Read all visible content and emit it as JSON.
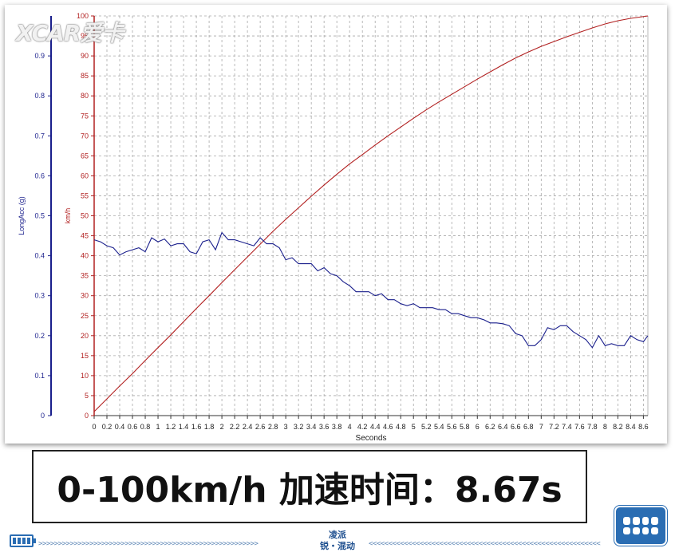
{
  "watermark": "XCAR爱卡",
  "result_text": "0-100km/h  加速时间：8.67s",
  "footer": {
    "brand_line1": "凌派",
    "brand_line2": "锐・混动",
    "arrows_left": ">>>>>>>>>>>>>>>>>>>>>>>>>>>>>>>>>>>>>>>>>>>>>>>>>>>>>>>>",
    "arrows_right": "<<<<<<<<<<<<<<<<<<<<<<<<<<<<<<<<<<<<<<<<<<<<<<<<<<<<<<<<<<<"
  },
  "icons": [
    "battery-icon",
    "engine-icon"
  ],
  "chart_data": {
    "type": "line",
    "title": "",
    "xlabel": "Seconds",
    "xlim": [
      0,
      8.67
    ],
    "x_ticks": [
      "0",
      "0.2",
      "0.4",
      "0.6",
      "0.8",
      "1",
      "1.2",
      "1.4",
      "1.6",
      "1.8",
      "2",
      "2.2",
      "2.4",
      "2.6",
      "2.8",
      "3",
      "3.2",
      "3.4",
      "3.6",
      "3.8",
      "4",
      "4.2",
      "4.4",
      "4.6",
      "4.8",
      "5",
      "5.2",
      "5.4",
      "5.6",
      "5.8",
      "6",
      "6.2",
      "6.4",
      "6.6",
      "6.8",
      "7",
      "7.2",
      "7.4",
      "7.6",
      "7.8",
      "8",
      "8.2",
      "8.4",
      "8.6"
    ],
    "x_tick_values": [
      0,
      0.2,
      0.4,
      0.6,
      0.8,
      1,
      1.2,
      1.4,
      1.6,
      1.8,
      2,
      2.2,
      2.4,
      2.6,
      2.8,
      3,
      3.2,
      3.4,
      3.6,
      3.8,
      4,
      4.2,
      4.4,
      4.6,
      4.8,
      5,
      5.2,
      5.4,
      5.6,
      5.8,
      6,
      6.2,
      6.4,
      6.6,
      6.8,
      7,
      7.2,
      7.4,
      7.6,
      7.8,
      8,
      8.2,
      8.4,
      8.6
    ],
    "grid": true,
    "axes": [
      {
        "id": "acc",
        "label": "LongAcc (g)",
        "color": "#1a1f8c",
        "ylim": [
          0,
          1
        ],
        "ticks": [
          "0",
          "0.1",
          "0.2",
          "0.3",
          "0.4",
          "0.5",
          "0.6",
          "0.7",
          "0.8",
          "0.9"
        ],
        "tick_values": [
          0,
          0.1,
          0.2,
          0.3,
          0.4,
          0.5,
          0.6,
          0.7,
          0.8,
          0.9
        ]
      },
      {
        "id": "speed",
        "label": "km/h",
        "color": "#b22020",
        "ylim": [
          0,
          100
        ],
        "ticks": [
          "0",
          "5",
          "10",
          "15",
          "20",
          "25",
          "30",
          "35",
          "40",
          "45",
          "50",
          "55",
          "60",
          "65",
          "70",
          "75",
          "80",
          "85",
          "90",
          "95",
          "100"
        ],
        "tick_values": [
          0,
          5,
          10,
          15,
          20,
          25,
          30,
          35,
          40,
          45,
          50,
          55,
          60,
          65,
          70,
          75,
          80,
          85,
          90,
          95,
          100
        ]
      }
    ],
    "series": [
      {
        "axis": "speed",
        "color": "#b22020",
        "x": [
          0,
          0.2,
          0.4,
          0.6,
          0.8,
          1.0,
          1.2,
          1.4,
          1.6,
          1.8,
          2.0,
          2.2,
          2.4,
          2.6,
          2.8,
          3.0,
          3.2,
          3.4,
          3.6,
          3.8,
          4.0,
          4.2,
          4.4,
          4.6,
          4.8,
          5.0,
          5.2,
          5.4,
          5.6,
          5.8,
          6.0,
          6.2,
          6.4,
          6.6,
          6.8,
          7.0,
          7.2,
          7.4,
          7.6,
          7.8,
          8.0,
          8.2,
          8.4,
          8.67
        ],
        "y": [
          1,
          4.2,
          7.4,
          10.5,
          13.8,
          17,
          20.2,
          23.5,
          26.8,
          30,
          33.3,
          36.5,
          39.7,
          42.9,
          46.1,
          49.1,
          52.0,
          54.9,
          57.7,
          60.4,
          63.0,
          65.3,
          67.7,
          70.0,
          72.2,
          74.4,
          76.5,
          78.5,
          80.4,
          82.3,
          84.2,
          86.0,
          87.8,
          89.5,
          91.0,
          92.4,
          93.6,
          94.8,
          95.9,
          97.0,
          98.0,
          98.8,
          99.4,
          100
        ]
      },
      {
        "axis": "acc",
        "color": "#1a1f8c",
        "x": [
          0,
          0.1,
          0.2,
          0.3,
          0.4,
          0.5,
          0.6,
          0.7,
          0.8,
          0.9,
          1.0,
          1.1,
          1.2,
          1.3,
          1.4,
          1.5,
          1.6,
          1.7,
          1.8,
          1.9,
          2.0,
          2.1,
          2.2,
          2.3,
          2.4,
          2.5,
          2.6,
          2.7,
          2.8,
          2.9,
          3.0,
          3.1,
          3.2,
          3.3,
          3.4,
          3.5,
          3.6,
          3.7,
          3.8,
          3.9,
          4.0,
          4.1,
          4.2,
          4.3,
          4.4,
          4.5,
          4.6,
          4.7,
          4.8,
          4.9,
          5.0,
          5.1,
          5.2,
          5.3,
          5.4,
          5.5,
          5.6,
          5.7,
          5.8,
          5.9,
          6.0,
          6.1,
          6.2,
          6.3,
          6.4,
          6.5,
          6.6,
          6.7,
          6.8,
          6.9,
          7.0,
          7.1,
          7.2,
          7.3,
          7.4,
          7.5,
          7.6,
          7.7,
          7.8,
          7.9,
          8.0,
          8.1,
          8.2,
          8.3,
          8.4,
          8.5,
          8.6,
          8.67
        ],
        "y": [
          0.44,
          0.435,
          0.425,
          0.42,
          0.402,
          0.41,
          0.415,
          0.42,
          0.41,
          0.445,
          0.435,
          0.442,
          0.425,
          0.43,
          0.43,
          0.41,
          0.405,
          0.435,
          0.44,
          0.415,
          0.458,
          0.44,
          0.44,
          0.435,
          0.43,
          0.425,
          0.445,
          0.43,
          0.43,
          0.42,
          0.39,
          0.395,
          0.38,
          0.38,
          0.38,
          0.362,
          0.37,
          0.355,
          0.35,
          0.335,
          0.325,
          0.31,
          0.31,
          0.31,
          0.3,
          0.305,
          0.29,
          0.29,
          0.28,
          0.275,
          0.28,
          0.27,
          0.27,
          0.27,
          0.265,
          0.265,
          0.255,
          0.255,
          0.25,
          0.245,
          0.245,
          0.24,
          0.232,
          0.232,
          0.23,
          0.225,
          0.205,
          0.2,
          0.175,
          0.175,
          0.19,
          0.22,
          0.215,
          0.225,
          0.225,
          0.21,
          0.2,
          0.19,
          0.17,
          0.2,
          0.175,
          0.18,
          0.175,
          0.175,
          0.2,
          0.19,
          0.185,
          0.2
        ]
      }
    ]
  }
}
